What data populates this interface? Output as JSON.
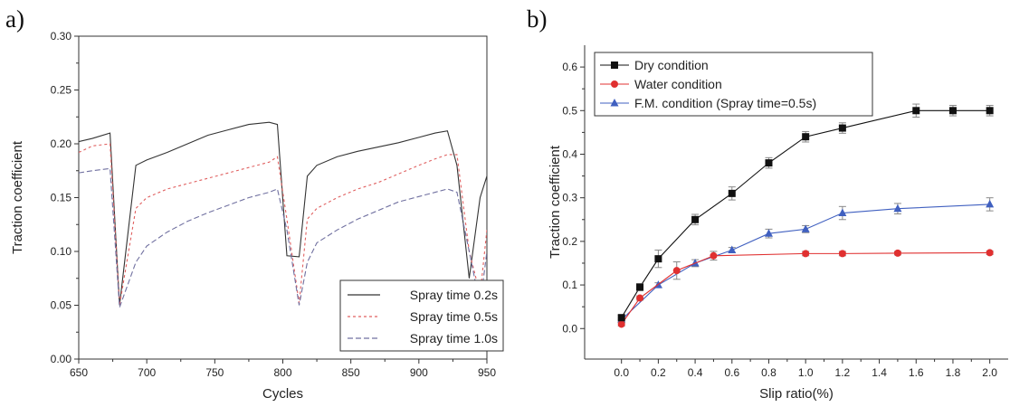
{
  "chart_data": [
    {
      "panel_label": "a)",
      "type": "line",
      "xlabel": "Cycles",
      "ylabel": "Traction coefficient",
      "xlim": [
        650,
        950
      ],
      "ylim": [
        0.0,
        0.3
      ],
      "xticks": [
        650,
        700,
        750,
        800,
        850,
        900,
        950
      ],
      "yticks": [
        0.0,
        0.05,
        0.1,
        0.15,
        0.2,
        0.25,
        0.3
      ],
      "ytick_labels": [
        "0.00",
        "0.05",
        "0.10",
        "0.15",
        "0.20",
        "0.25",
        "0.30"
      ],
      "legend_position": "bottom-right",
      "series": [
        {
          "name": "Spray time 0.2s",
          "color": "#333333",
          "dash": "solid",
          "x": [
            650,
            660,
            673,
            680,
            692,
            700,
            715,
            730,
            745,
            760,
            775,
            790,
            796,
            803,
            812,
            818,
            825,
            840,
            855,
            870,
            885,
            900,
            912,
            921,
            928,
            937,
            945,
            950
          ],
          "y": [
            0.202,
            0.205,
            0.21,
            0.05,
            0.18,
            0.185,
            0.192,
            0.2,
            0.208,
            0.213,
            0.218,
            0.22,
            0.218,
            0.096,
            0.095,
            0.17,
            0.18,
            0.188,
            0.193,
            0.197,
            0.201,
            0.206,
            0.21,
            0.212,
            0.18,
            0.075,
            0.15,
            0.17
          ]
        },
        {
          "name": "Spray time 0.5s",
          "color": "#e06060",
          "dash": "3,3",
          "x": [
            650,
            660,
            673,
            680,
            692,
            700,
            715,
            730,
            745,
            760,
            775,
            790,
            796,
            803,
            812,
            818,
            825,
            840,
            855,
            870,
            885,
            900,
            912,
            921,
            928,
            937,
            945,
            950
          ],
          "y": [
            0.192,
            0.198,
            0.2,
            0.05,
            0.14,
            0.15,
            0.158,
            0.163,
            0.168,
            0.173,
            0.178,
            0.183,
            0.188,
            0.13,
            0.052,
            0.13,
            0.14,
            0.15,
            0.158,
            0.164,
            0.172,
            0.18,
            0.186,
            0.19,
            0.19,
            0.1,
            0.06,
            0.12
          ]
        },
        {
          "name": "Spray time 1.0s",
          "color": "#7070a0",
          "dash": "6,3",
          "x": [
            650,
            660,
            673,
            680,
            692,
            700,
            715,
            730,
            745,
            760,
            775,
            790,
            796,
            803,
            812,
            818,
            825,
            840,
            855,
            870,
            885,
            900,
            912,
            921,
            928,
            937,
            945,
            950
          ],
          "y": [
            0.173,
            0.175,
            0.177,
            0.048,
            0.09,
            0.105,
            0.118,
            0.128,
            0.136,
            0.143,
            0.15,
            0.155,
            0.158,
            0.12,
            0.05,
            0.09,
            0.108,
            0.12,
            0.13,
            0.138,
            0.146,
            0.151,
            0.155,
            0.158,
            0.155,
            0.1,
            0.05,
            0.1
          ]
        }
      ]
    },
    {
      "panel_label": "b)",
      "type": "line",
      "xlabel": "Slip ratio(%)",
      "ylabel": "Traction coefficient",
      "xlim": [
        -0.2,
        2.1
      ],
      "ylim": [
        -0.07,
        0.65
      ],
      "xticks": [
        0.0,
        0.2,
        0.4,
        0.6,
        0.8,
        1.0,
        1.2,
        1.4,
        1.6,
        1.8,
        2.0
      ],
      "xtick_labels": [
        "0.0",
        "0.2",
        "0.4",
        "0.6",
        "0.8",
        "1.0",
        "1.2",
        "1.4",
        "1.6",
        "1.8",
        "2.0"
      ],
      "yticks": [
        0.0,
        0.1,
        0.2,
        0.3,
        0.4,
        0.5,
        0.6
      ],
      "ytick_labels": [
        "0.0",
        "0.1",
        "0.2",
        "0.3",
        "0.4",
        "0.5",
        "0.6"
      ],
      "legend_position": "top-left",
      "series": [
        {
          "name": "Dry condition",
          "color": "#111111",
          "marker": "square",
          "x": [
            0.0,
            0.1,
            0.2,
            0.4,
            0.6,
            0.8,
            1.0,
            1.2,
            1.6,
            1.8,
            2.0
          ],
          "y": [
            0.025,
            0.095,
            0.16,
            0.25,
            0.31,
            0.38,
            0.44,
            0.46,
            0.5,
            0.5,
            0.5
          ],
          "err": [
            0.005,
            0.008,
            0.02,
            0.012,
            0.015,
            0.012,
            0.012,
            0.012,
            0.015,
            0.012,
            0.012
          ]
        },
        {
          "name": "Water condition",
          "color": "#e03030",
          "marker": "circle",
          "x": [
            0.0,
            0.1,
            0.3,
            0.5,
            1.0,
            1.2,
            1.5,
            2.0
          ],
          "y": [
            0.01,
            0.07,
            0.133,
            0.167,
            0.172,
            0.172,
            0.173,
            0.174
          ],
          "err": [
            0.004,
            0.005,
            0.02,
            0.01,
            0.005,
            0.005,
            0.004,
            0.004
          ]
        },
        {
          "name": "F.M. condition (Spray time=0.5s)",
          "color": "#4060c0",
          "marker": "triangle",
          "x": [
            0.0,
            0.2,
            0.4,
            0.6,
            0.8,
            1.0,
            1.2,
            1.5,
            2.0
          ],
          "y": [
            0.02,
            0.1,
            0.15,
            0.18,
            0.218,
            0.228,
            0.265,
            0.275,
            0.285
          ],
          "err": [
            0.004,
            0.005,
            0.008,
            0.006,
            0.01,
            0.008,
            0.015,
            0.012,
            0.015
          ]
        }
      ]
    }
  ]
}
